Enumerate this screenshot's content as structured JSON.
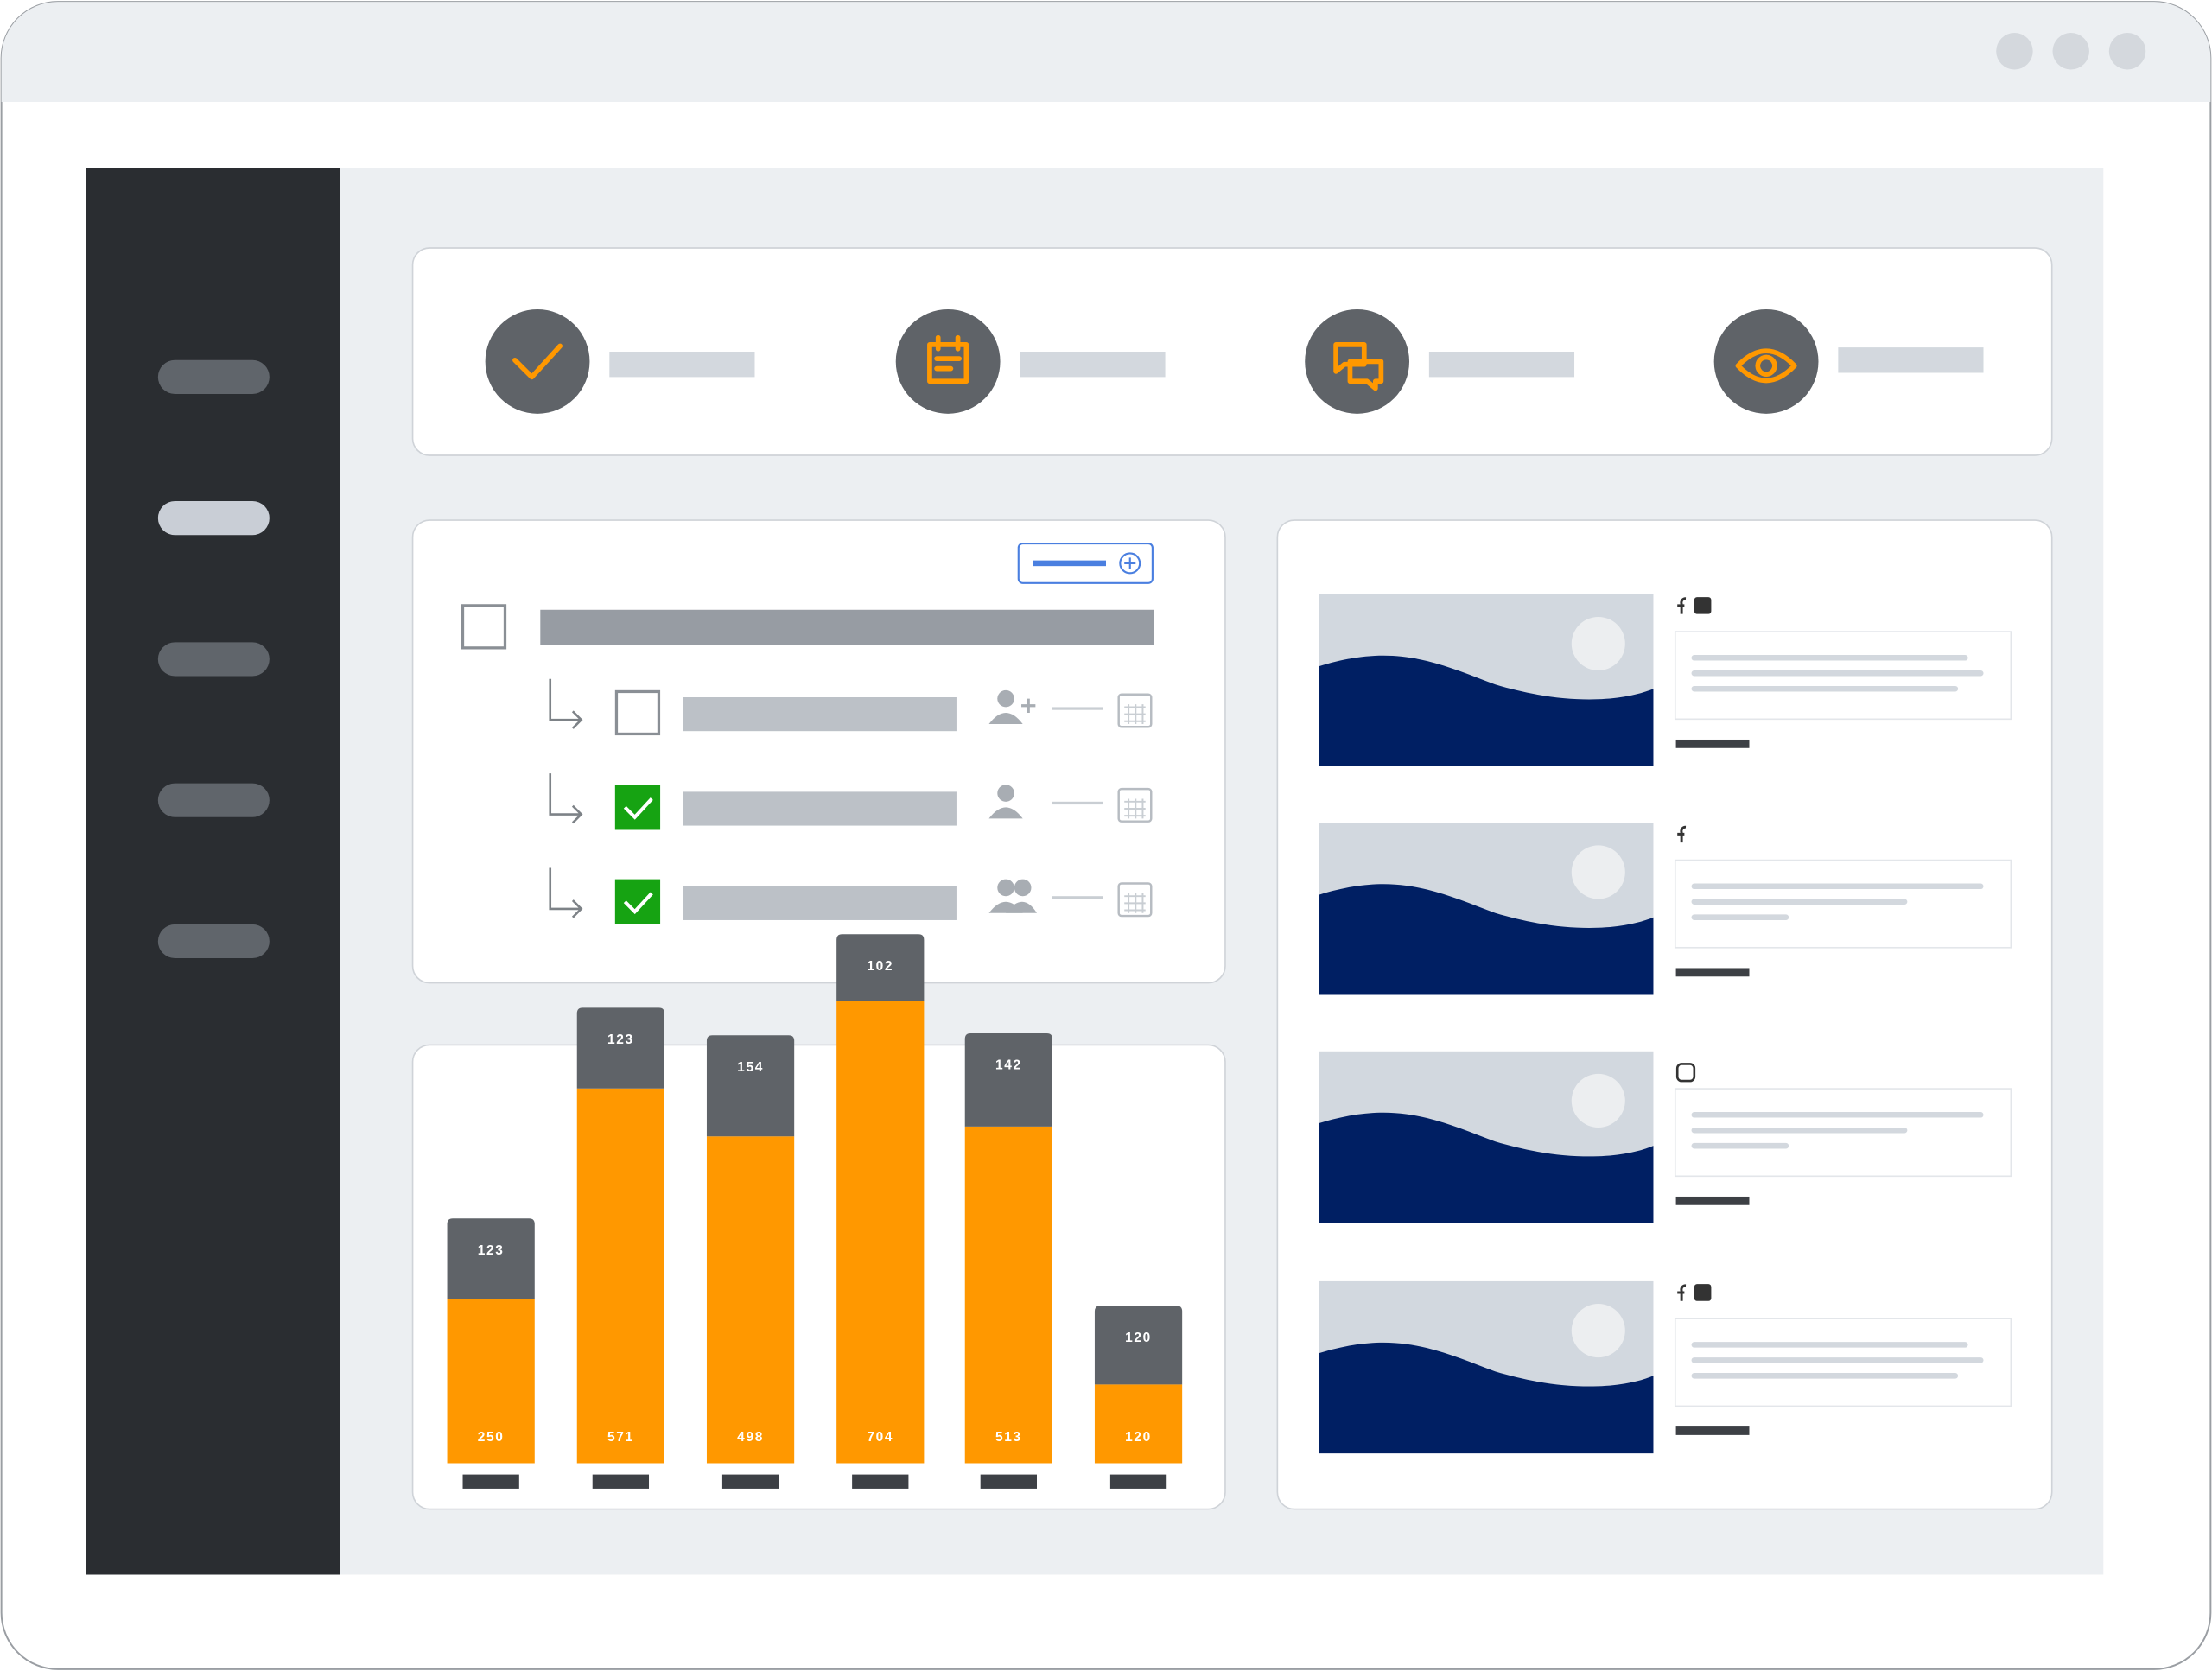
{
  "chart_data": {
    "type": "stacked-bar",
    "categories": [
      null,
      null,
      null,
      null,
      null,
      null
    ],
    "series": [
      {
        "color": "#ff9800",
        "values": [
          250,
          571,
          498,
          704,
          513,
          120
        ]
      },
      {
        "color": "#5f6368",
        "values": [
          123,
          123,
          154,
          102,
          142,
          120
        ]
      }
    ]
  }
}
